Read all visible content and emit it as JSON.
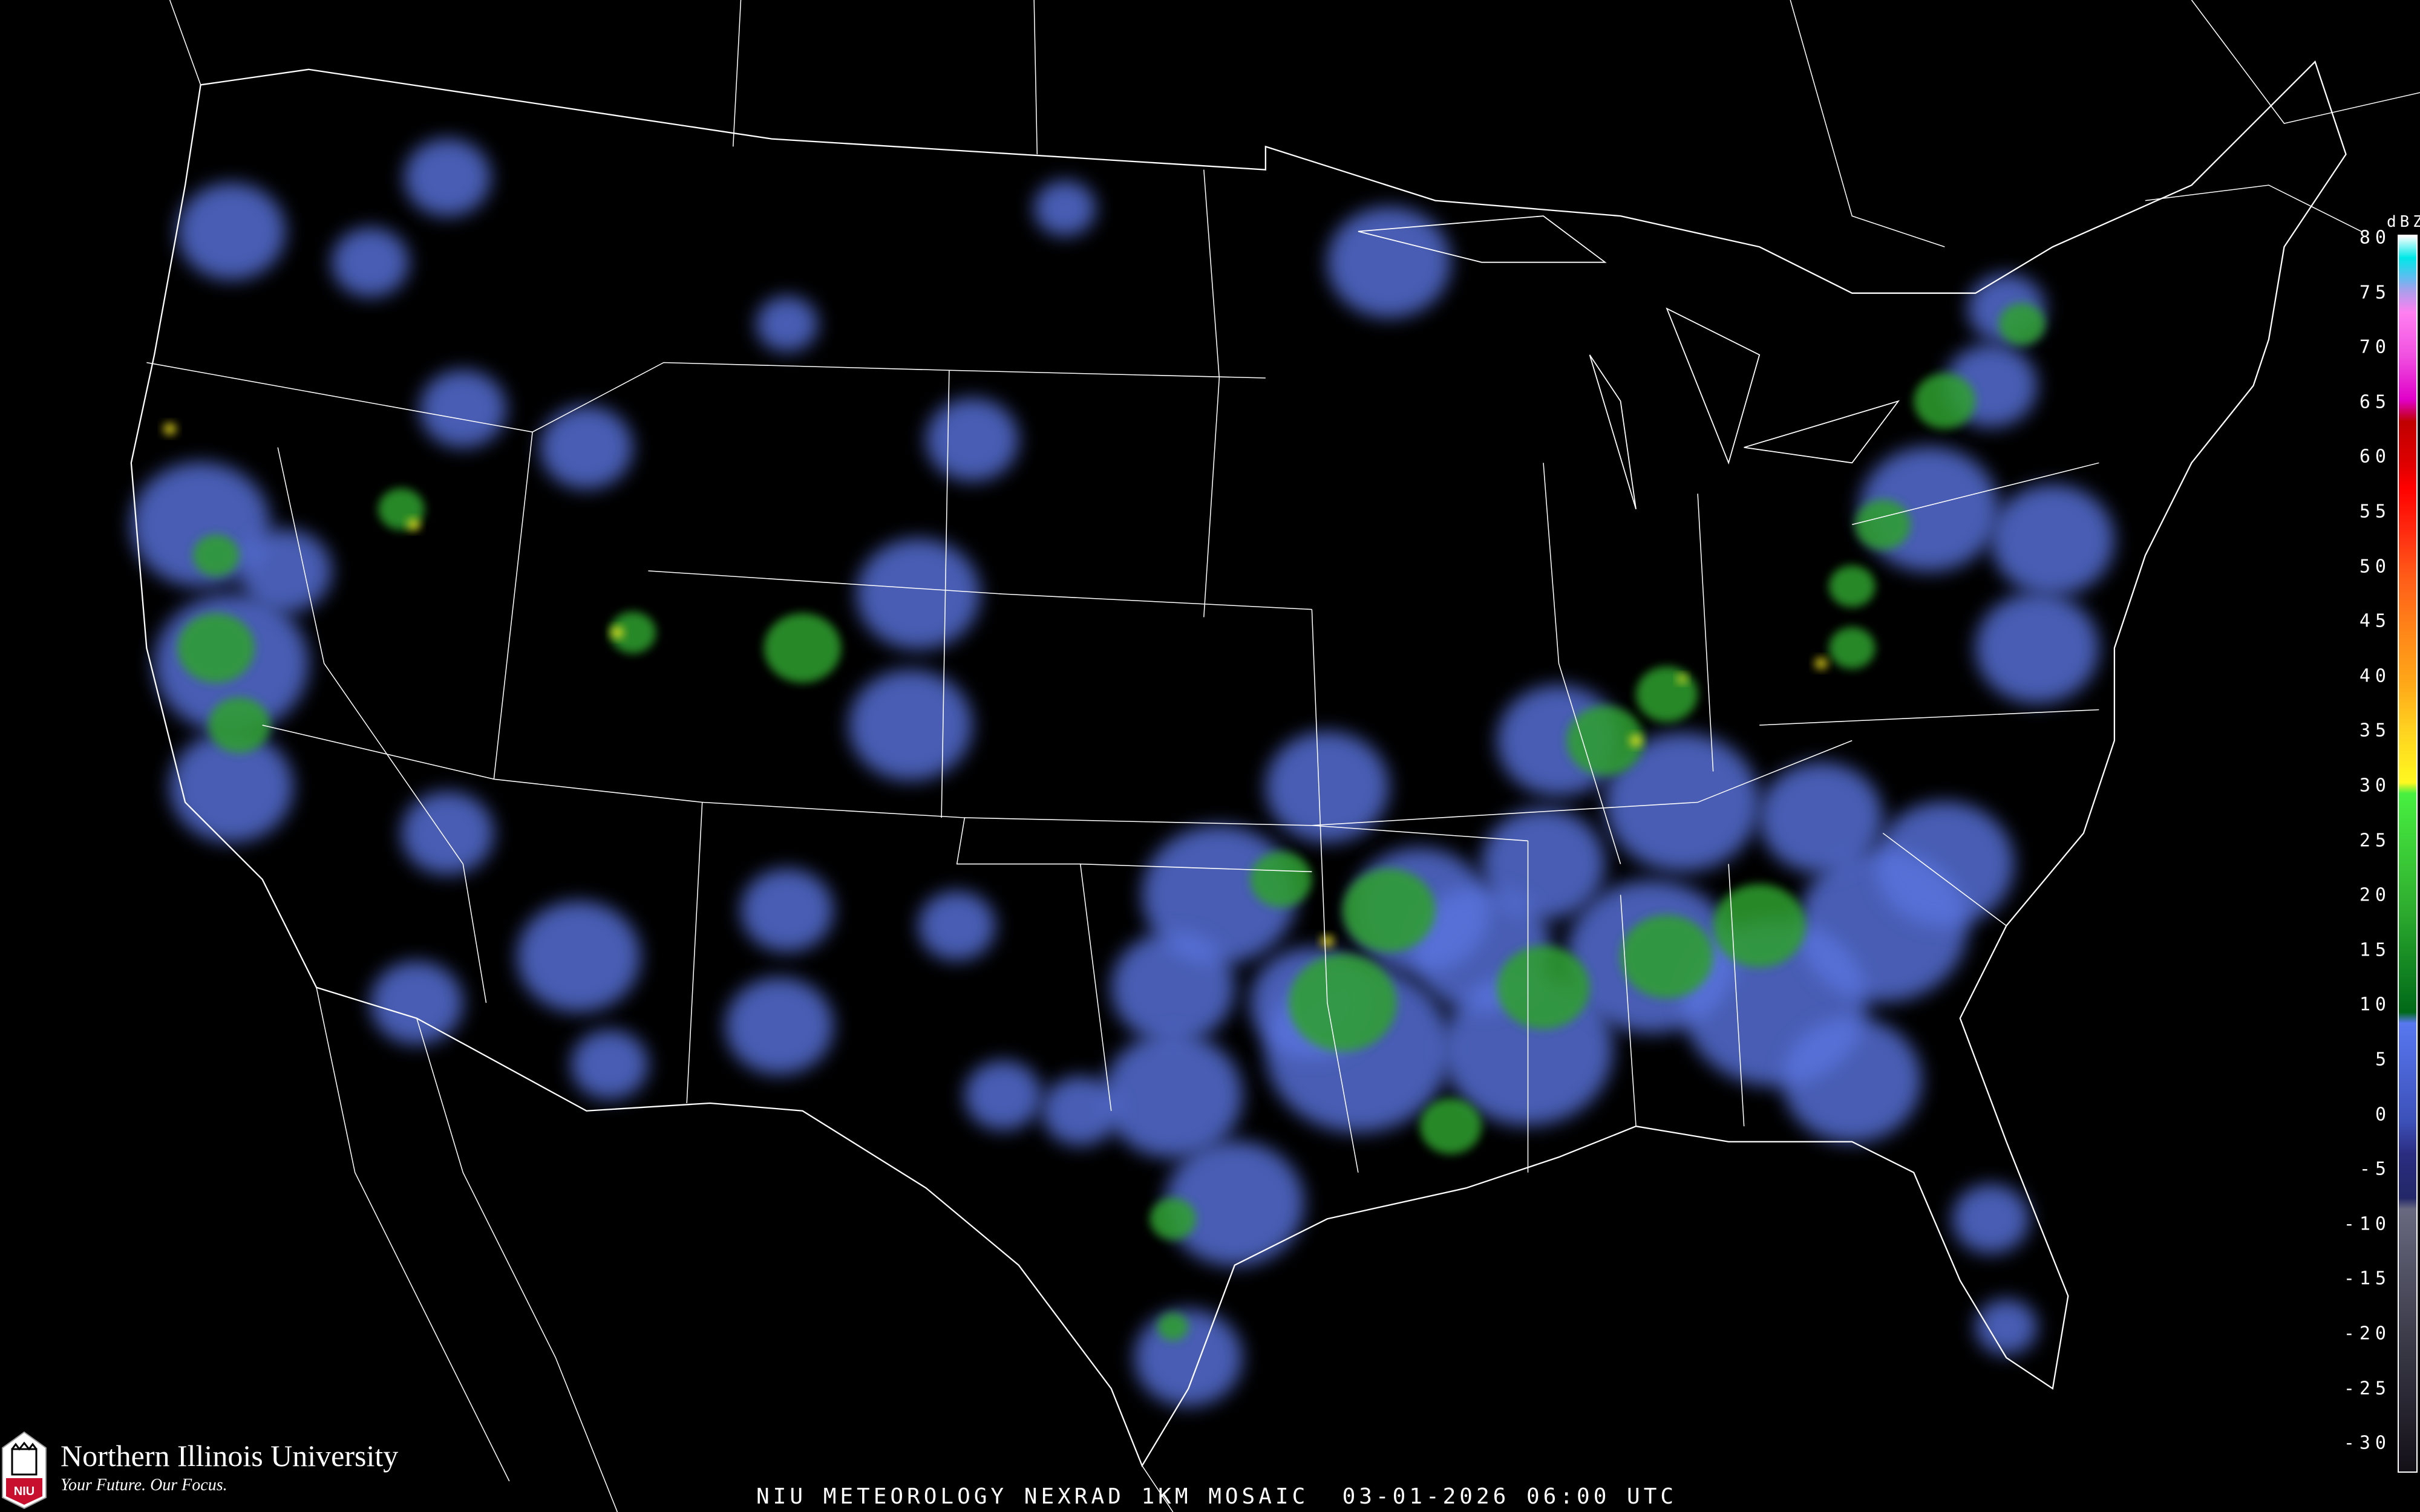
{
  "product_title": "NIU METEOROLOGY NEXRAD 1KM MOSAIC  03-01-2026 06:00 UTC",
  "logo": {
    "name": "Northern Illinois University",
    "tagline": "Your Future. Our Focus.",
    "mark": "NIU",
    "brand_color": "#c8102e"
  },
  "colorbar": {
    "unit": "dBZ",
    "labels": [
      "80",
      "75",
      "70",
      "65",
      "60",
      "55",
      "50",
      "45",
      "40",
      "35",
      "30",
      "25",
      "20",
      "15",
      "10",
      "5",
      "0",
      "-5",
      "-10",
      "-15",
      "-20",
      "-25",
      "-30"
    ],
    "range": [
      -32,
      81
    ],
    "stops": [
      {
        "dbz": 81,
        "color": "#ffffff"
      },
      {
        "dbz": 79,
        "color": "#00e8e8"
      },
      {
        "dbz": 77,
        "color": "#6ab8f0"
      },
      {
        "dbz": 76,
        "color": "#a8a0ec"
      },
      {
        "dbz": 74,
        "color": "#ff80f0"
      },
      {
        "dbz": 70,
        "color": "#f050e0"
      },
      {
        "dbz": 66,
        "color": "#e000c8"
      },
      {
        "dbz": 64,
        "color": "#c00000"
      },
      {
        "dbz": 60,
        "color": "#e00000"
      },
      {
        "dbz": 58,
        "color": "#ff0000"
      },
      {
        "dbz": 54,
        "color": "#ff2a10"
      },
      {
        "dbz": 50,
        "color": "#ff5a18"
      },
      {
        "dbz": 45,
        "color": "#ff8418"
      },
      {
        "dbz": 40,
        "color": "#ffa818"
      },
      {
        "dbz": 36,
        "color": "#ffd020"
      },
      {
        "dbz": 31,
        "color": "#fff820"
      },
      {
        "dbz": 30,
        "color": "#48f040"
      },
      {
        "dbz": 20,
        "color": "#30b030"
      },
      {
        "dbz": 10,
        "color": "#006818"
      },
      {
        "dbz": 9,
        "color": "#5878f0"
      },
      {
        "dbz": 0,
        "color": "#3c50b8"
      },
      {
        "dbz": -3,
        "color": "#2a2c80"
      },
      {
        "dbz": -7,
        "color": "#222868"
      },
      {
        "dbz": -8,
        "color": "#686880"
      },
      {
        "dbz": -20,
        "color": "#3a3a48"
      },
      {
        "dbz": -32,
        "color": "#141018"
      }
    ]
  },
  "colors": {
    "background": "#000000",
    "boundaries": "#ffffff",
    "counties": "#444444",
    "highways": "#8a4a20",
    "light_echo": "#5a74e0",
    "moderate_echo": "#2fa02f",
    "heavy_echo": "#fff020"
  }
}
